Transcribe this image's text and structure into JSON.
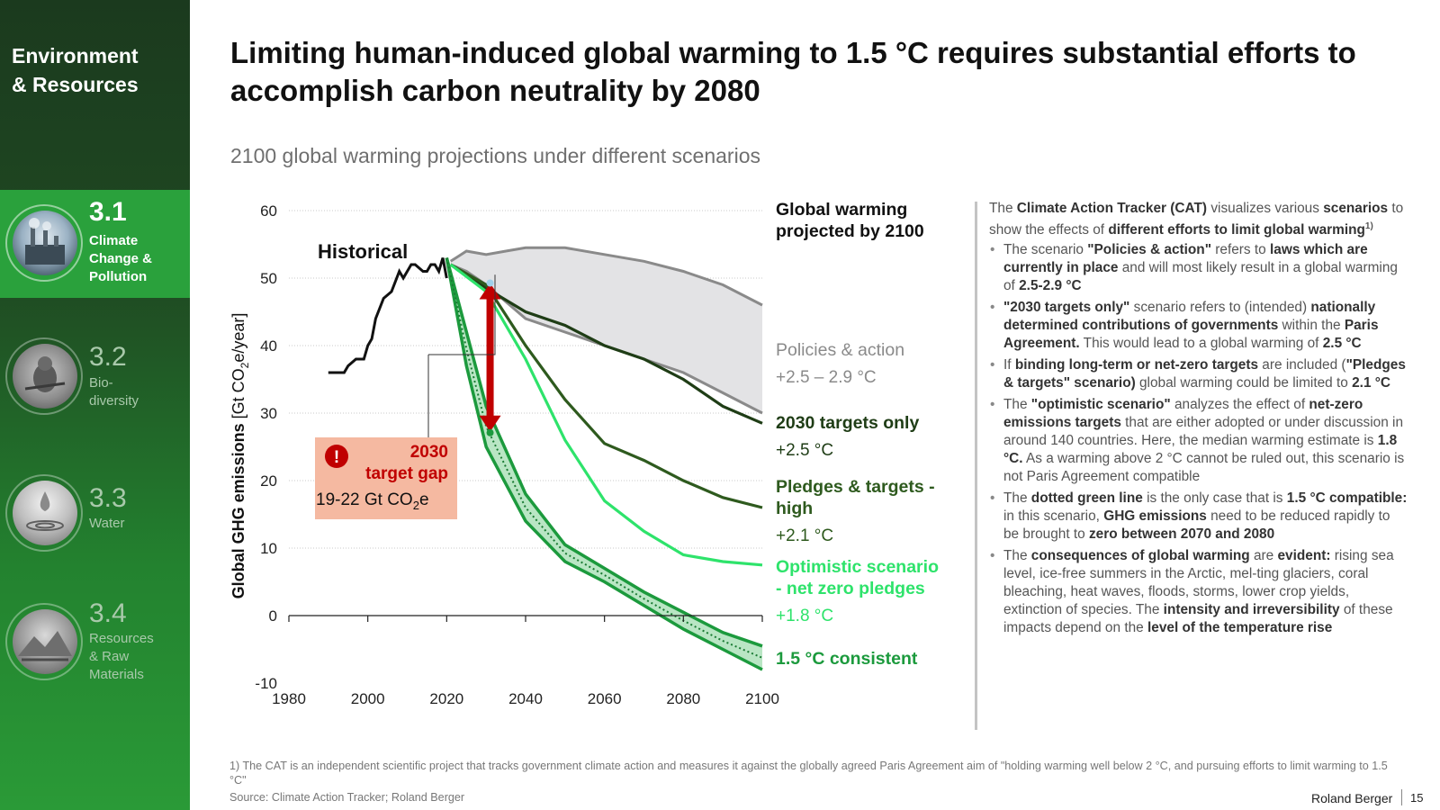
{
  "sidebar": {
    "title_line1": "Environment",
    "title_line2": "& Resources",
    "sections": [
      {
        "num": "3.1",
        "label_lines": [
          "Climate",
          "Change &",
          "Pollution"
        ]
      },
      {
        "num": "3.2",
        "label_lines": [
          "Bio-",
          "diversity"
        ]
      },
      {
        "num": "3.3",
        "label_lines": [
          "Water"
        ]
      },
      {
        "num": "3.4",
        "label_lines": [
          "Resources",
          "& Raw",
          "Materials"
        ]
      }
    ]
  },
  "main_title": "Limiting human-induced global warming to 1.5 °C requires substantial efforts to accomplish carbon neutrality by 2080",
  "subtitle": "2100 global warming projections under different scenarios",
  "chart_data": {
    "type": "line",
    "ylabel": "Global GHG emissions [Gt CO2e/year]",
    "xlim": [
      1980,
      2100
    ],
    "ylim": [
      -10,
      60
    ],
    "x_ticks": [
      "1980",
      "2000",
      "2020",
      "2040",
      "2060",
      "2080",
      "2100"
    ],
    "y_ticks": [
      "-10",
      "0",
      "10",
      "20",
      "30",
      "40",
      "50",
      "60"
    ],
    "legend_header": "Global warming projected by 2100",
    "historical_label": "Historical",
    "series": [
      {
        "name": "Historical",
        "color": "#111111",
        "x": [
          1990,
          1994,
          1995,
          1997,
          1999,
          2000,
          2001,
          2002,
          2004,
          2006,
          2008,
          2009,
          2010,
          2011,
          2012,
          2014,
          2015,
          2016,
          2017,
          2018,
          2019,
          2020
        ],
        "y": [
          36,
          36,
          37,
          38,
          38,
          40,
          41,
          44,
          47,
          48,
          51,
          50,
          51,
          52,
          52,
          51,
          51,
          52,
          52,
          51,
          53,
          50
        ]
      },
      {
        "name": "Policies & action",
        "value": "+2.5 – 2.9 °C",
        "color": "#8a8a8a",
        "upper": {
          "x": [
            2021,
            2025,
            2030,
            2035,
            2040,
            2050,
            2060,
            2070,
            2080,
            2090,
            2100
          ],
          "y": [
            52.5,
            54,
            53.5,
            54,
            54.5,
            54.5,
            53.5,
            52.5,
            51,
            49,
            46
          ]
        },
        "lower": {
          "x": [
            2021,
            2025,
            2030,
            2040,
            2050,
            2060,
            2070,
            2080,
            2090,
            2100
          ],
          "y": [
            52,
            51,
            49,
            44,
            42,
            40,
            38,
            36,
            33,
            30
          ]
        }
      },
      {
        "name": "2030 targets only",
        "value": "+2.5 °C",
        "color": "#1f3d16",
        "x": [
          2021,
          2030,
          2040,
          2050,
          2060,
          2070,
          2080,
          2090,
          2100
        ],
        "y": [
          52,
          48.5,
          45,
          43,
          40,
          38,
          35,
          31,
          28.5
        ]
      },
      {
        "name": "Pledges & targets - high",
        "value": "+2.1 °C",
        "color": "#2e5a1e",
        "x": [
          2021,
          2030,
          2040,
          2050,
          2060,
          2070,
          2080,
          2090,
          2100
        ],
        "y": [
          52,
          49,
          40,
          32,
          25.5,
          23,
          20,
          17.5,
          16
        ]
      },
      {
        "name": "Optimistic scenario - net zero pledges",
        "value": "+1.8 °C",
        "color": "#2ee36b",
        "x": [
          2021,
          2030,
          2040,
          2050,
          2060,
          2070,
          2080,
          2090,
          2100
        ],
        "y": [
          52,
          48,
          38,
          26,
          17,
          12.5,
          9,
          8,
          7.5
        ]
      },
      {
        "name": "1.5 °C consistent",
        "value": "",
        "color": "#1c9a3d",
        "upper": {
          "x": [
            2020,
            2025,
            2030,
            2040,
            2050,
            2060,
            2070,
            2080,
            2090,
            2100
          ],
          "y": [
            53,
            42,
            31,
            18,
            10.5,
            7,
            3.5,
            0.5,
            -2.5,
            -4.5
          ]
        },
        "lower": {
          "x": [
            2020,
            2025,
            2030,
            2040,
            2050,
            2060,
            2070,
            2080,
            2090,
            2100
          ],
          "y": [
            53,
            37,
            25,
            14,
            8,
            5,
            1.5,
            -2,
            -5,
            -8
          ]
        }
      }
    ],
    "annotation": {
      "title_line1": "2030",
      "title_line2": "target gap",
      "value": "19-22 Gt CO2e",
      "from": [
        2031,
        49
      ],
      "to": [
        2031,
        27.5
      ]
    }
  },
  "side_text": {
    "intro": [
      "The ",
      "Climate Action Tracker (CAT)",
      " visualizes various ",
      "scenarios",
      " to show the effects of ",
      "different efforts to limit global warming",
      "1)"
    ],
    "bullets": [
      [
        "The scenario ",
        "\"Policies & action\"",
        " refers to ",
        "laws which are currently in place",
        " and will most likely result in a global warming of ",
        "2.5-2.9 °C"
      ],
      [
        "\"2030 targets only\"",
        " scenario refers to (intended) ",
        "nationally determined contributions of governments",
        " within the ",
        "Paris Agreement.",
        " This would lead to a global warming of ",
        "2.5 °C"
      ],
      [
        "If ",
        "binding long-term or net-zero targets",
        " are included (",
        "\"Pledges & targets\" scenario)",
        " global warming could be limited to ",
        "2.1 °C"
      ],
      [
        "The ",
        "\"optimistic scenario\"",
        " analyzes the effect of ",
        "net-zero emissions targets",
        " that are either adopted or under discussion in around 140 countries. Here, the median warming estimate is ",
        "1.8 °C.",
        " As a warming above 2 °C cannot be ruled out, this scenario is not Paris Agreement compatible"
      ],
      [
        "The ",
        "dotted green line",
        " is the only case that is ",
        "1.5 °C compatible:",
        " in this scenario, ",
        "GHG emissions",
        " need to be reduced rapidly to be brought to ",
        "zero between 2070 and 2080"
      ],
      [
        "The ",
        "consequences of global warming",
        " are ",
        "evident:",
        " rising sea level, ice-free summers in the Arctic, mel-ting glaciers, coral bleaching, heat waves, floods, storms, lower crop yields, extinction of species. The ",
        "intensity and irreversibility",
        " of these impacts depend on the ",
        "level of the temperature rise"
      ]
    ]
  },
  "footnote": "1) The CAT is an independent scientific project that tracks government climate action and measures it against the globally agreed Paris Agreement aim of \"holding warming well below 2 °C, and pursuing efforts to limit warming to 1.5 °C\"",
  "source": "Source: Climate Action Tracker; Roland Berger",
  "brand": "Roland Berger",
  "page_number": "15"
}
